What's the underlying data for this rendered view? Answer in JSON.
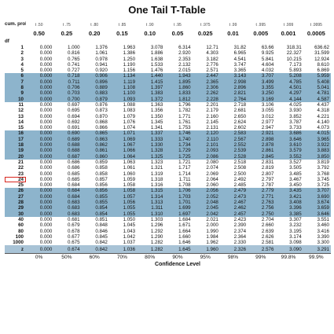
{
  "title": "One Tail T-Table",
  "header": {
    "cum_prob_label": "cum. prob",
    "t_labels": [
      "t .50",
      "t .75",
      "t .80",
      "t .85",
      "t .90",
      "t .95",
      "t .975",
      "t .99",
      "t .995",
      "t .999",
      "t .9995"
    ],
    "one_tail_label": "one-tail",
    "one_tail": [
      "0.50",
      "0.25",
      "0.20",
      "0.15",
      "0.10",
      "0.05",
      "0.025",
      "0.01",
      "0.005",
      "0.001",
      "0.0005"
    ],
    "df_label": "df"
  },
  "rows": [
    {
      "df": "1",
      "v": [
        "0.000",
        "1.000",
        "1.376",
        "1.963",
        "3.078",
        "6.314",
        "12.71",
        "31.82",
        "63.66",
        "318.31",
        "636.62"
      ],
      "shade": false
    },
    {
      "df": "2",
      "v": [
        "0.000",
        "0.816",
        "1.061",
        "1.386",
        "1.886",
        "2.920",
        "4.303",
        "6.965",
        "9.925",
        "22.327",
        "31.599"
      ],
      "shade": false
    },
    {
      "df": "3",
      "v": [
        "0.000",
        "0.765",
        "0.978",
        "1.250",
        "1.638",
        "2.353",
        "3.182",
        "4.541",
        "5.841",
        "10.215",
        "12.924"
      ],
      "shade": false
    },
    {
      "df": "4",
      "v": [
        "0.000",
        "0.741",
        "0.941",
        "1.190",
        "1.533",
        "2.132",
        "2.776",
        "3.747",
        "4.604",
        "7.173",
        "8.610"
      ],
      "shade": false
    },
    {
      "df": "5",
      "v": [
        "0.000",
        "0.727",
        "0.920",
        "1.156",
        "1.476",
        "2.015",
        "2.571",
        "3.365",
        "4.032",
        "5.893",
        "6.869"
      ],
      "shade": false
    },
    {
      "df": "6",
      "v": [
        "0.000",
        "0.718",
        "0.906",
        "1.134",
        "1.440",
        "1.943",
        "2.447",
        "3.143",
        "3.707",
        "5.208",
        "5.959"
      ],
      "shade": true
    },
    {
      "df": "7",
      "v": [
        "0.000",
        "0.711",
        "0.896",
        "1.119",
        "1.415",
        "1.895",
        "2.365",
        "2.998",
        "3.499",
        "4.785",
        "5.408"
      ],
      "shade": true
    },
    {
      "df": "8",
      "v": [
        "0.000",
        "0.706",
        "0.889",
        "1.108",
        "1.397",
        "1.860",
        "2.306",
        "2.896",
        "3.355",
        "4.501",
        "5.041"
      ],
      "shade": true
    },
    {
      "df": "9",
      "v": [
        "0.000",
        "0.703",
        "0.883",
        "1.100",
        "1.383",
        "1.833",
        "2.262",
        "2.821",
        "3.250",
        "4.297",
        "4.781"
      ],
      "shade": true
    },
    {
      "df": "10",
      "v": [
        "0.000",
        "0.700",
        "0.879",
        "1.093",
        "1.372",
        "1.812",
        "2.228",
        "2.764",
        "3.169",
        "4.144",
        "4.587"
      ],
      "shade": true
    },
    {
      "df": "11",
      "v": [
        "0.000",
        "0.697",
        "0.876",
        "1.088",
        "1.363",
        "1.796",
        "2.201",
        "2.718",
        "3.106",
        "4.025",
        "4.437"
      ],
      "shade": false
    },
    {
      "df": "12",
      "v": [
        "0.000",
        "0.695",
        "0.873",
        "1.083",
        "1.356",
        "1.782",
        "2.179",
        "2.681",
        "3.055",
        "3.930",
        "4.318"
      ],
      "shade": false
    },
    {
      "df": "13",
      "v": [
        "0.000",
        "0.694",
        "0.870",
        "1.079",
        "1.350",
        "1.771",
        "2.160",
        "2.650",
        "3.012",
        "3.852",
        "4.221"
      ],
      "shade": false
    },
    {
      "df": "14",
      "v": [
        "0.000",
        "0.692",
        "0.868",
        "1.076",
        "1.345",
        "1.761",
        "2.145",
        "2.624",
        "2.977",
        "3.787",
        "4.140"
      ],
      "shade": false
    },
    {
      "df": "15",
      "v": [
        "0.000",
        "0.691",
        "0.866",
        "1.074",
        "1.341",
        "1.753",
        "2.131",
        "2.602",
        "2.947",
        "3.733",
        "4.073"
      ],
      "shade": false
    },
    {
      "df": "16",
      "v": [
        "0.000",
        "0.690",
        "0.865",
        "1.071",
        "1.337",
        "1.746",
        "2.120",
        "2.583",
        "2.921",
        "3.686",
        "4.015"
      ],
      "shade": true
    },
    {
      "df": "17",
      "v": [
        "0.000",
        "0.689",
        "0.863",
        "1.069",
        "1.333",
        "1.740",
        "2.110",
        "2.567",
        "2.898",
        "3.646",
        "3.965"
      ],
      "shade": true
    },
    {
      "df": "18",
      "v": [
        "0.000",
        "0.688",
        "0.862",
        "1.067",
        "1.330",
        "1.734",
        "2.101",
        "2.552",
        "2.878",
        "3.610",
        "3.922"
      ],
      "shade": true
    },
    {
      "df": "19",
      "v": [
        "0.000",
        "0.688",
        "0.861",
        "1.066",
        "1.328",
        "1.729",
        "2.093",
        "2.539",
        "2.861",
        "3.579",
        "3.883"
      ],
      "shade": true
    },
    {
      "df": "20",
      "v": [
        "0.000",
        "0.687",
        "0.860",
        "1.064",
        "1.325",
        "1.725",
        "2.086",
        "2.528",
        "2.845",
        "3.552",
        "3.850"
      ],
      "shade": true
    },
    {
      "df": "21",
      "v": [
        "0.000",
        "0.686",
        "0.859",
        "1.063",
        "1.323",
        "1.721",
        "2.080",
        "2.518",
        "2.831",
        "3.527",
        "3.819"
      ],
      "shade": false
    },
    {
      "df": "22",
      "v": [
        "0.000",
        "0.686",
        "0.858",
        "1.061",
        "1.321",
        "1.717",
        "2.074",
        "2.508",
        "2.819",
        "3.505",
        "3.792"
      ],
      "shade": false
    },
    {
      "df": "23",
      "v": [
        "0.000",
        "0.685",
        "0.858",
        "1.060",
        "1.319",
        "1.714",
        "2.069",
        "2.500",
        "2.807",
        "3.485",
        "3.768"
      ],
      "shade": false
    },
    {
      "df": "24",
      "v": [
        "0.000",
        "0.685",
        "0.857",
        "1.059",
        "1.318",
        "1.711",
        "2.064",
        "2.492",
        "2.797",
        "3.467",
        "3.745"
      ],
      "shade": false
    },
    {
      "df": "25",
      "v": [
        "0.000",
        "0.684",
        "0.856",
        "1.058",
        "1.316",
        "1.708",
        "2.060",
        "2.485",
        "2.787",
        "3.450",
        "3.725"
      ],
      "shade": false
    },
    {
      "df": "26",
      "v": [
        "0.000",
        "0.684",
        "0.856",
        "1.058",
        "1.315",
        "1.706",
        "2.056",
        "2.479",
        "2.779",
        "3.435",
        "3.707"
      ],
      "shade": true
    },
    {
      "df": "27",
      "v": [
        "0.000",
        "0.684",
        "0.855",
        "1.057",
        "1.314",
        "1.703",
        "2.052",
        "2.473",
        "2.771",
        "3.421",
        "3.690"
      ],
      "shade": true
    },
    {
      "df": "28",
      "v": [
        "0.000",
        "0.683",
        "0.855",
        "1.056",
        "1.313",
        "1.701",
        "2.048",
        "2.467",
        "2.763",
        "3.408",
        "3.674"
      ],
      "shade": true
    },
    {
      "df": "29",
      "v": [
        "0.000",
        "0.683",
        "0.854",
        "1.055",
        "1.311",
        "1.699",
        "2.045",
        "2.462",
        "2.756",
        "3.396",
        "3.659"
      ],
      "shade": true
    },
    {
      "df": "30",
      "v": [
        "0.000",
        "0.683",
        "0.854",
        "1.055",
        "1.310",
        "1.697",
        "2.042",
        "2.457",
        "2.750",
        "3.385",
        "3.646"
      ],
      "shade": true
    },
    {
      "df": "40",
      "v": [
        "0.000",
        "0.681",
        "0.851",
        "1.050",
        "1.303",
        "1.684",
        "2.021",
        "2.423",
        "2.704",
        "3.307",
        "3.551"
      ],
      "shade": false
    },
    {
      "df": "60",
      "v": [
        "0.000",
        "0.679",
        "0.848",
        "1.045",
        "1.296",
        "1.671",
        "2.000",
        "2.390",
        "2.660",
        "3.232",
        "3.460"
      ],
      "shade": false
    },
    {
      "df": "80",
      "v": [
        "0.000",
        "0.678",
        "0.846",
        "1.043",
        "1.292",
        "1.664",
        "1.990",
        "2.374",
        "2.639",
        "3.195",
        "3.416"
      ],
      "shade": false
    },
    {
      "df": "100",
      "v": [
        "0.000",
        "0.677",
        "0.845",
        "1.042",
        "1.290",
        "1.660",
        "1.984",
        "2.364",
        "2.626",
        "3.174",
        "3.390"
      ],
      "shade": false
    },
    {
      "df": "1000",
      "v": [
        "0.000",
        "0.675",
        "0.842",
        "1.037",
        "1.282",
        "1.646",
        "1.962",
        "2.330",
        "2.581",
        "3.098",
        "3.300"
      ],
      "shade": false
    }
  ],
  "z_row": {
    "label": "z",
    "v": [
      "0.000",
      "0.674",
      "0.842",
      "1.036",
      "1.282",
      "1.645",
      "1.960",
      "2.326",
      "2.576",
      "3.090",
      "3.291"
    ]
  },
  "confidence": [
    "0%",
    "50%",
    "60%",
    "70%",
    "80%",
    "90%",
    "95%",
    "98%",
    "99%",
    "99.8%",
    "99.9%"
  ],
  "confidence_label": "Confidence Level",
  "highlight_df": "24",
  "colors": {
    "shade": "#8db4cc",
    "highlight": "#d8261f"
  }
}
